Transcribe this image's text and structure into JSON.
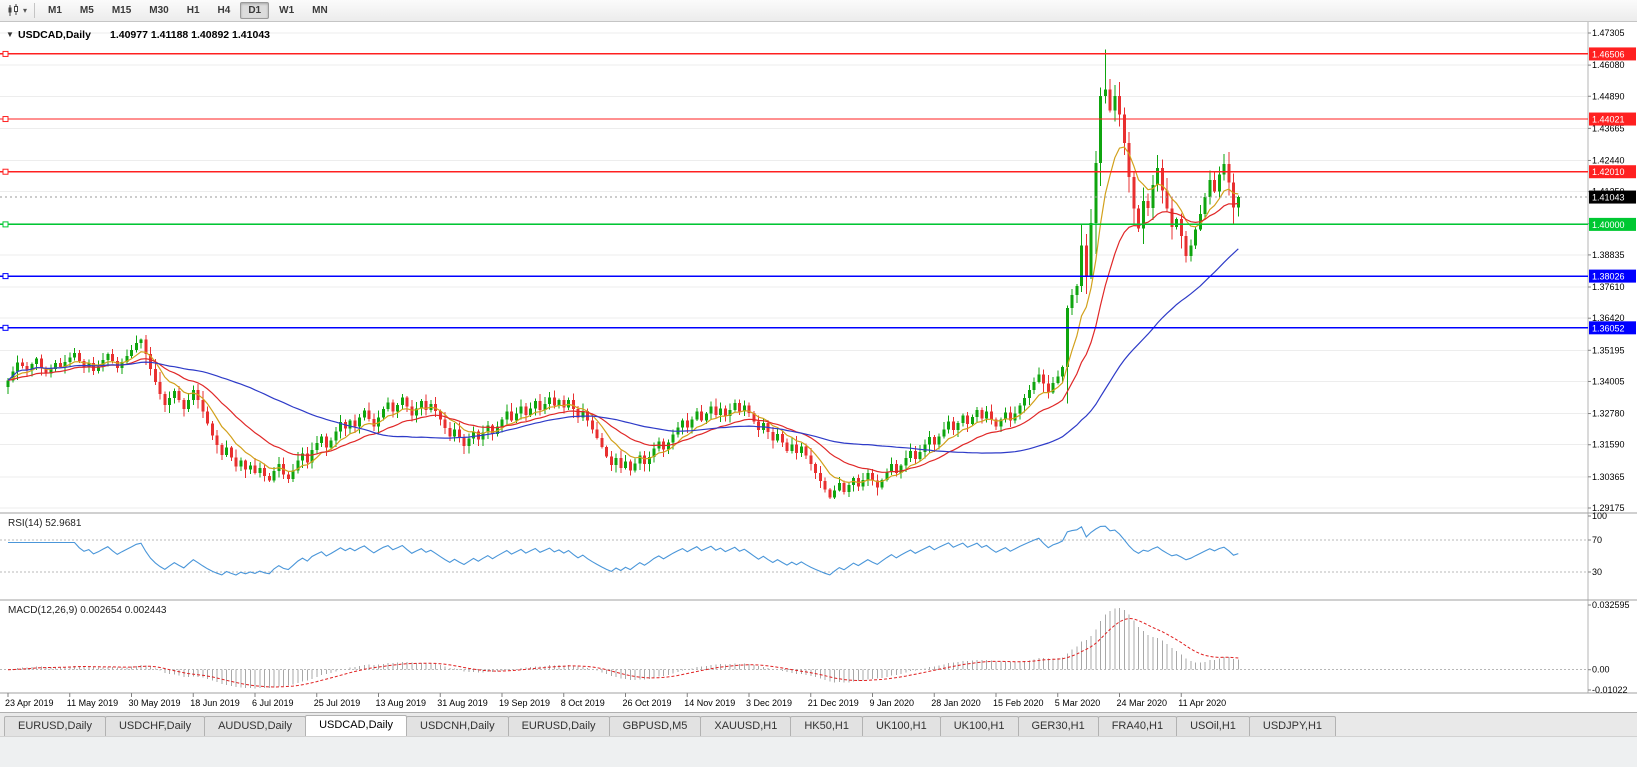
{
  "toolbar": {
    "timeframes": [
      "M1",
      "M5",
      "M15",
      "M30",
      "H1",
      "H4",
      "D1",
      "W1",
      "MN"
    ],
    "active_timeframe": "D1"
  },
  "chart_header": {
    "collapse_glyph": "▼",
    "symbol_label": "USDCAD,Daily",
    "ohlc_label": "1.40977 1.41188 1.40892 1.41043"
  },
  "rsi_panel": {
    "label": "RSI(14) 52.9681",
    "axis_labels": [
      "100",
      "70",
      "30"
    ],
    "level_lines": [
      70,
      30
    ],
    "color": "#4A96D9"
  },
  "macd_panel": {
    "label": "MACD(12,26,9) 0.002654 0.002443",
    "axis_labels": [
      "0.032595",
      "0.00",
      "-0.01022"
    ],
    "max": 0.032595,
    "min": -0.01022
  },
  "chart_data": {
    "type": "candlestick",
    "symbol": "USDCAD",
    "timeframe": "Daily",
    "last_ohlc": {
      "open": 1.40977,
      "high": 1.41188,
      "low": 1.40892,
      "close": 1.41043
    },
    "current_price": {
      "value": 1.41043,
      "label": "1.41043"
    },
    "price_axis": {
      "min": 1.29175,
      "max": 1.47305,
      "tick_labels": [
        "1.47305",
        "1.46080",
        "1.44890",
        "1.43665",
        "1.42440",
        "1.41250",
        "1.40025",
        "1.38835",
        "1.37610",
        "1.36420",
        "1.35195",
        "1.34005",
        "1.32780",
        "1.31590",
        "1.30365",
        "1.29175"
      ]
    },
    "hlines": [
      {
        "price": 1.46506,
        "label": "1.46506",
        "color": "#FF2020"
      },
      {
        "price": 1.44021,
        "label": "1.44021",
        "color": "#FF2020"
      },
      {
        "price": 1.4201,
        "label": "1.42010",
        "color": "#FF2020"
      },
      {
        "price": 1.4,
        "label": "1.40000",
        "color": "#00C832"
      },
      {
        "price": 1.38026,
        "label": "1.38026",
        "color": "#0000FF"
      },
      {
        "price": 1.36052,
        "label": "1.36052",
        "color": "#0000FF"
      }
    ],
    "x_date_labels": [
      "23 Apr 2019",
      "11 May 2019",
      "30 May 2019",
      "18 Jun 2019",
      "6 Jul 2019",
      "25 Jul 2019",
      "13 Aug 2019",
      "31 Aug 2019",
      "19 Sep 2019",
      "8 Oct 2019",
      "26 Oct 2019",
      "14 Nov 2019",
      "3 Dec 2019",
      "21 Dec 2019",
      "9 Jan 2020",
      "28 Jan 2020",
      "15 Feb 2020",
      "5 Mar 2020",
      "24 Mar 2020",
      "11 Apr 2020"
    ],
    "bars_per_label": 13,
    "open_first": 1.338,
    "closes": [
      1.3405,
      1.3438,
      1.3472,
      1.346,
      1.3442,
      1.3468,
      1.3488,
      1.3452,
      1.343,
      1.3448,
      1.347,
      1.3455,
      1.3475,
      1.3492,
      1.351,
      1.3478,
      1.3455,
      1.347,
      1.344,
      1.3458,
      1.3482,
      1.3505,
      1.3478,
      1.3452,
      1.3475,
      1.3498,
      1.352,
      1.3548,
      1.356,
      1.3505,
      1.3448,
      1.3398,
      1.3352,
      1.331,
      1.3338,
      1.3365,
      1.333,
      1.3295,
      1.333,
      1.3368,
      1.333,
      1.3285,
      1.324,
      1.3195,
      1.3158,
      1.312,
      1.3148,
      1.311,
      1.3075,
      1.3098,
      1.3065,
      1.308,
      1.3052,
      1.307,
      1.304,
      1.3022,
      1.3058,
      1.3085,
      1.3045,
      1.3028,
      1.306,
      1.3098,
      1.3125,
      1.3092,
      1.3138,
      1.3165,
      1.319,
      1.3148,
      1.3175,
      1.321,
      1.3245,
      1.322,
      1.3252,
      1.3228,
      1.3262,
      1.329,
      1.3258,
      1.3228,
      1.3262,
      1.3296,
      1.332,
      1.3285,
      1.331,
      1.334,
      1.3305,
      1.327,
      1.3298,
      1.3325,
      1.3292,
      1.3315,
      1.3288,
      1.3255,
      1.3222,
      1.319,
      1.3218,
      1.3185,
      1.3155,
      1.3182,
      1.321,
      1.3178,
      1.3205,
      1.3232,
      1.32,
      1.3228,
      1.3255,
      1.3285,
      1.3252,
      1.3278,
      1.3305,
      1.3272,
      1.3298,
      1.3325,
      1.3292,
      1.3315,
      1.334,
      1.3308,
      1.333,
      1.3302,
      1.333,
      1.3295,
      1.3262,
      1.3288,
      1.3252,
      1.3218,
      1.3185,
      1.315,
      1.3115,
      1.3082,
      1.3108,
      1.307,
      1.3095,
      1.306,
      1.3088,
      1.3118,
      1.3085,
      1.3112,
      1.3145,
      1.3172,
      1.314,
      1.3168,
      1.3198,
      1.3225,
      1.3252,
      1.3225,
      1.3255,
      1.3285,
      1.3252,
      1.3278,
      1.3305,
      1.3272,
      1.3298,
      1.3268,
      1.3292,
      1.3318,
      1.3285,
      1.3308,
      1.328,
      1.3248,
      1.3215,
      1.3242,
      1.3208,
      1.3175,
      1.32,
      1.3168,
      1.3135,
      1.316,
      1.3128,
      1.3152,
      1.3118,
      1.3085,
      1.3052,
      1.302,
      1.2988,
      1.2958,
      1.2985,
      1.3012,
      1.2978,
      1.3005,
      1.3032,
      1.3,
      1.3025,
      1.3052,
      1.3022,
      1.2995,
      1.3025,
      1.3055,
      1.3085,
      1.3052,
      1.308,
      1.3108,
      1.3135,
      1.3105,
      1.3132,
      1.316,
      1.3188,
      1.316,
      1.319,
      1.3218,
      1.3248,
      1.3215,
      1.3242,
      1.327,
      1.3238,
      1.3265,
      1.3292,
      1.326,
      1.3285,
      1.3255,
      1.3228,
      1.3255,
      1.3282,
      1.3252,
      1.3278,
      1.3308,
      1.3338,
      1.3368,
      1.3398,
      1.3428,
      1.3392,
      1.3358,
      1.3395,
      1.342,
      1.3455,
      1.368,
      1.373,
      1.3765,
      1.392,
      1.3805,
      1.4005,
      1.4235,
      1.449,
      1.4515,
      1.4435,
      1.449,
      1.442,
      1.431,
      1.418,
      1.406,
      1.3985,
      1.409,
      1.4062,
      1.415,
      1.4215,
      1.413,
      1.406,
      1.399,
      1.402,
      1.3955,
      1.388,
      1.392,
      1.398,
      1.404,
      1.4105,
      1.417,
      1.4125,
      1.419,
      1.423,
      1.416,
      1.4065,
      1.4104
    ],
    "wick_overrides": {
      "28": {
        "high": 1.3565
      },
      "55": {
        "low": 1.3016
      },
      "131": {
        "low": 1.3042
      },
      "173": {
        "low": 1.2951
      },
      "231": {
        "high": 1.4668
      },
      "242": {
        "high": 1.4265
      },
      "248": {
        "low": 1.3855
      },
      "256": {
        "high": 1.4268
      }
    },
    "moving_averages": [
      {
        "type": "ema",
        "period": 8,
        "color": "#D2A11C"
      },
      {
        "type": "ema",
        "period": 21,
        "color": "#E02828"
      },
      {
        "type": "sma",
        "period": 50,
        "color": "#2E3BC8"
      }
    ],
    "indicators": {
      "rsi": {
        "period": 14,
        "current": 52.9681
      },
      "macd": {
        "fast": 12,
        "slow": 26,
        "signal": 9,
        "current_main": 0.002654,
        "current_signal": 0.002443
      }
    },
    "colors": {
      "candle_up": "#0FA50F",
      "candle_down": "#E83030",
      "grid": "#EDEDED",
      "macd_histogram": "#A8A8A8",
      "macd_signal": "#E02020"
    }
  },
  "tabs": {
    "items": [
      "EURUSD,Daily",
      "USDCHF,Daily",
      "AUDUSD,Daily",
      "USDCAD,Daily",
      "USDCNH,Daily",
      "EURUSD,Daily",
      "GBPUSD,M5",
      "XAUUSD,H1",
      "HK50,H1",
      "UK100,H1",
      "UK100,H1",
      "GER30,H1",
      "FRA40,H1",
      "USOil,H1",
      "USDJPY,H1"
    ],
    "active_index": 3
  }
}
